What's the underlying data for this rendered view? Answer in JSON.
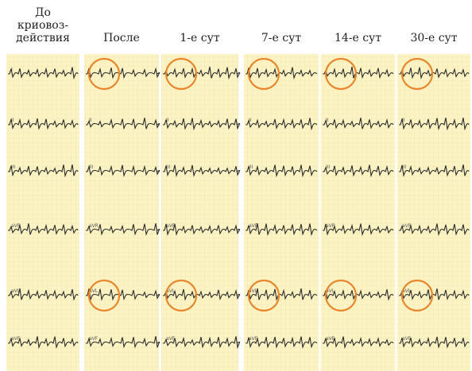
{
  "figure": {
    "columns": [
      {
        "header": [
          "До",
          "криовоз-",
          "действия"
        ]
      },
      {
        "header": [
          "После"
        ]
      },
      {
        "header": [
          "1-е сут"
        ]
      },
      {
        "header": [
          "7-е сут"
        ]
      },
      {
        "header": [
          "14-е сут"
        ]
      },
      {
        "header": [
          "30-е сут"
        ]
      }
    ],
    "leads": [
      "I",
      "II",
      "III",
      "aVR",
      "aVL",
      "aVF"
    ]
  }
}
